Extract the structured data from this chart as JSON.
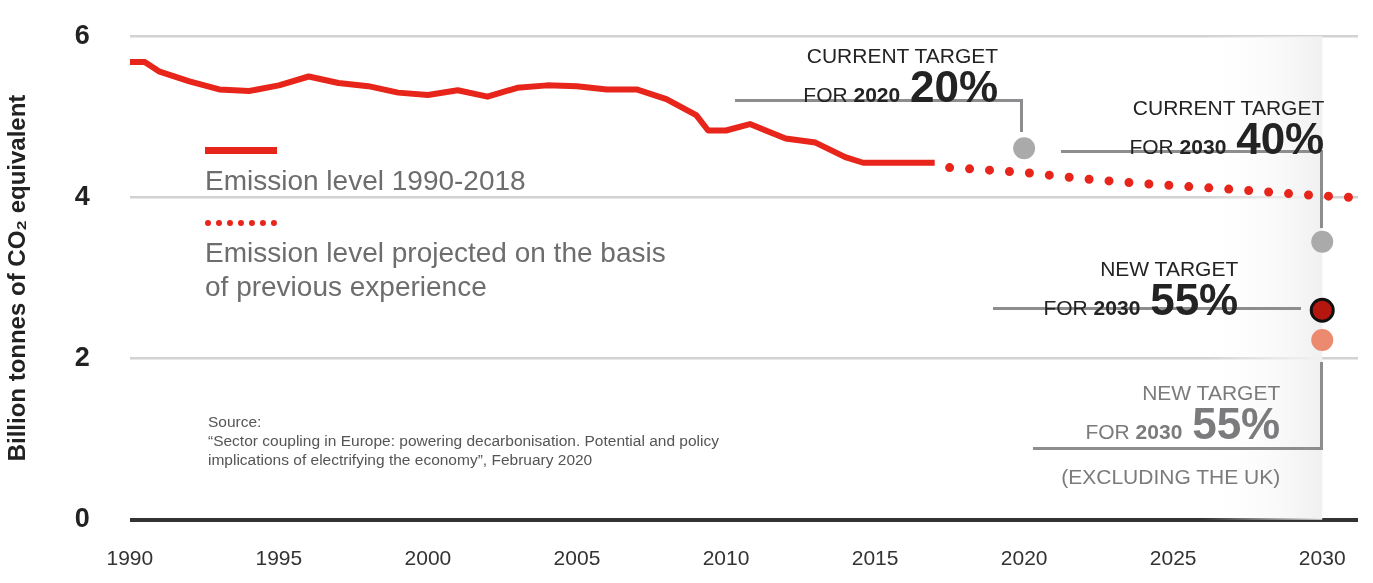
{
  "chart_data": {
    "type": "line",
    "ylabel": "Billion tonnes of CO₂ equivalent",
    "xlim": [
      1990,
      2031.2
    ],
    "xticks": [
      1990,
      1995,
      2000,
      2005,
      2010,
      2015,
      2020,
      2025,
      2030
    ],
    "ylim": [
      0,
      6
    ],
    "yticks": [
      0,
      2,
      4,
      6
    ],
    "grid": "y",
    "legend": "top left",
    "marker": "none",
    "bands": [
      {
        "axis": "x",
        "from": 2026,
        "to": 2030,
        "color": "#f0f0f0"
      }
    ],
    "series": [
      {
        "name": "Emission level 1990-2018",
        "type": "line",
        "line_style": "solid",
        "color": "#e8251b",
        "x": [
          1990,
          1990.5,
          1991,
          1992,
          1993,
          1994,
          1995,
          1996,
          1997,
          1998,
          1999,
          2000,
          2001,
          2002,
          2003,
          2004,
          2005,
          2006,
          2007,
          2008,
          2009,
          2009.4,
          2010,
          2010.8,
          2012,
          2013,
          2014,
          2014.6,
          2015,
          2016,
          2017
        ],
        "values": [
          5.68,
          5.68,
          5.56,
          5.44,
          5.34,
          5.32,
          5.39,
          5.5,
          5.42,
          5.38,
          5.3,
          5.27,
          5.33,
          5.25,
          5.36,
          5.39,
          5.38,
          5.34,
          5.34,
          5.22,
          5.02,
          4.83,
          4.83,
          4.91,
          4.73,
          4.68,
          4.5,
          4.43,
          4.43,
          4.43,
          4.43
        ]
      },
      {
        "name": "Emission level projected on the basis of previous experience",
        "type": "line",
        "line_style": "dotted",
        "color": "#e8251b",
        "x": [
          2017.5,
          2020,
          2022,
          2024,
          2027,
          2029.5,
          2031
        ],
        "values": [
          4.37,
          4.31,
          4.23,
          4.17,
          4.1,
          4.03,
          4.0
        ]
      },
      {
        "type": "scatter",
        "marker": "circle",
        "x": [
          2020,
          2030,
          2030,
          2030
        ],
        "values": [
          4.61,
          3.45,
          2.6,
          2.23
        ],
        "colors": [
          "#a9aaa9",
          "#a9aaa9",
          "#b5170f",
          "#ec8a6f"
        ]
      }
    ],
    "annotations": [
      "CURRENT TARGET\nFOR 2020 20%",
      "CURRENT TARGET\nFOR 2030 40%",
      "NEW TARGET\nFOR 2030 55%",
      "NEW TARGET\nFOR 2030 55%\n(EXCLUDING THE UK)",
      "Source:\n“Sector coupling in Europe: powering decarbonisation. Potential and policy\nimplications of electrifying the economy”, February 2020"
    ]
  }
}
